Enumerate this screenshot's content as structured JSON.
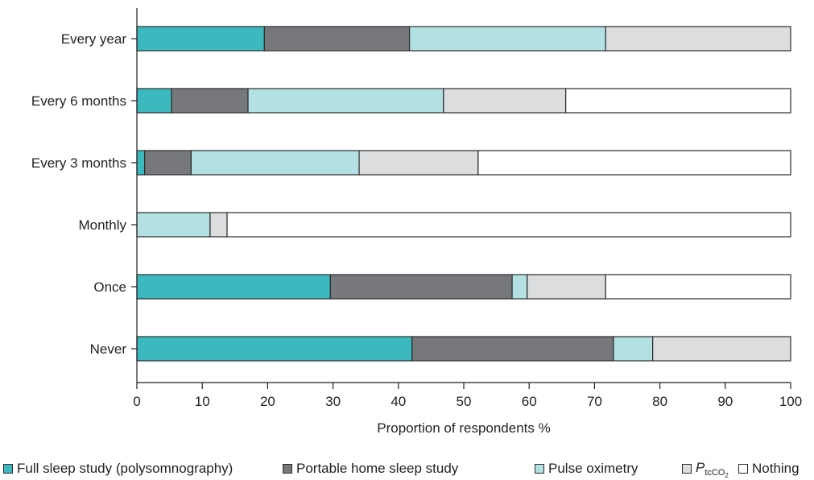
{
  "chart_data": {
    "type": "bar",
    "orientation": "horizontal",
    "stacked": true,
    "categories": [
      "Every year",
      "Every 6 months",
      "Every 3 months",
      "Monthly",
      "Once",
      "Never"
    ],
    "series": [
      {
        "name": "Full sleep study (polysomnography)",
        "color": "#3bb9bf",
        "values": [
          19.5,
          5.3,
          1.2,
          0,
          29.6,
          42.1
        ]
      },
      {
        "name": "Portable home sleep study",
        "color": "#77787b",
        "values": [
          22.2,
          11.7,
          7.1,
          0,
          27.8,
          30.8
        ]
      },
      {
        "name": "Pulse oximetry",
        "color": "#b3e1e3",
        "values": [
          30.0,
          29.9,
          25.7,
          11.2,
          2.3,
          6.0
        ]
      },
      {
        "name_parts": {
          "main": "P",
          "sub": "tcCO",
          "subsub": "2"
        },
        "color": "#dcdddf",
        "values": [
          28.3,
          18.7,
          18.2,
          2.6,
          12.0,
          21.1
        ]
      },
      {
        "name": "Nothing",
        "color": "#ffffff",
        "values": [
          0,
          34.4,
          47.8,
          86.2,
          28.3,
          0
        ]
      }
    ],
    "xlabel": "Proportion of respondents %",
    "xlim": [
      0,
      100
    ],
    "xticks": [
      0,
      10,
      20,
      30,
      40,
      50,
      60,
      70,
      80,
      90,
      100
    ],
    "grid": false,
    "legend_position": "bottom",
    "outline_color": "#2b2b2b"
  }
}
